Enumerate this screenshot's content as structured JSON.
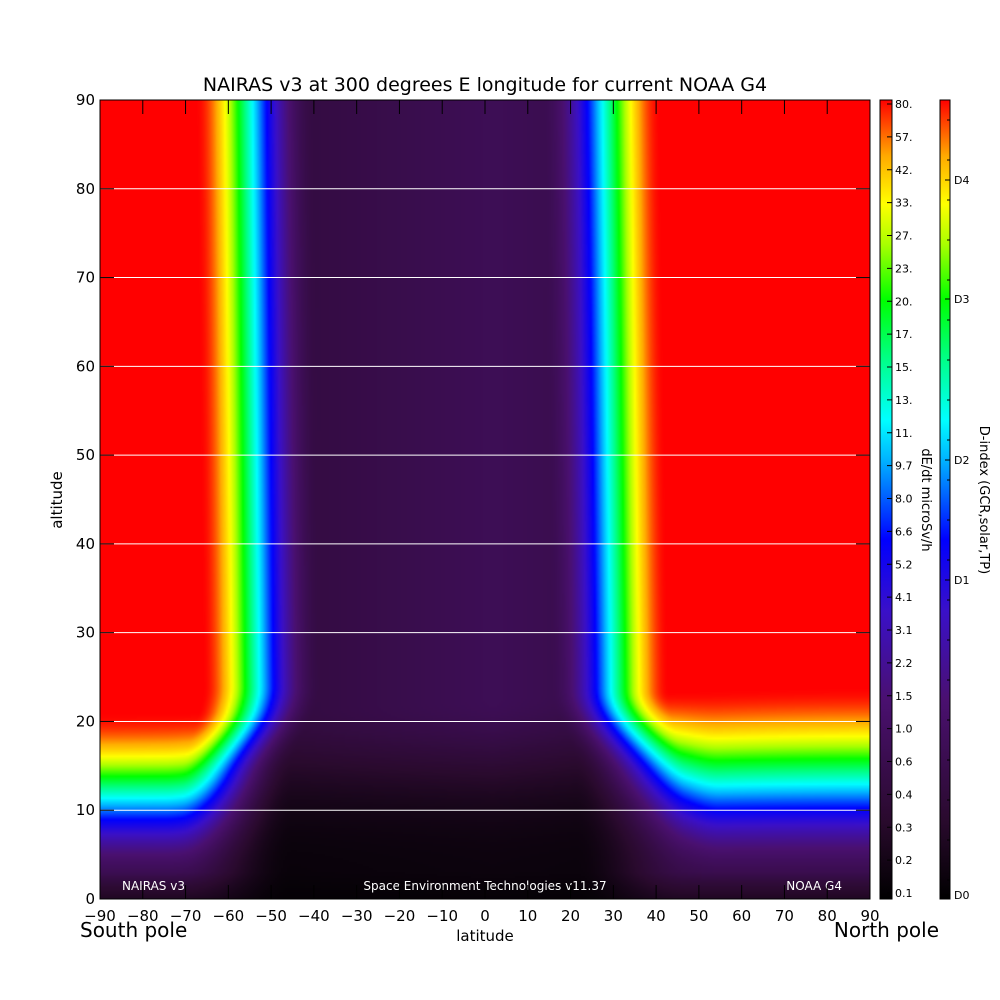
{
  "chart_data": {
    "type": "heatmap",
    "title": "NAIRAS v3 at 300 degrees E longitude for current NOAA G4",
    "xlabel": "latitude",
    "ylabel": "altitude",
    "x_ticks": [
      "-90",
      "-80",
      "-70",
      "-60",
      "-50",
      "-40",
      "-30",
      "-20",
      "-10",
      "0",
      "10",
      "20",
      "30",
      "40",
      "50",
      "60",
      "70",
      "80",
      "90"
    ],
    "y_ticks": [
      "0",
      "10",
      "20",
      "30",
      "40",
      "50",
      "60",
      "70",
      "80",
      "90"
    ],
    "xlim": [
      -90,
      90
    ],
    "ylim": [
      0,
      90
    ],
    "grid": "horizontal lines every 10 units of altitude",
    "left_caption": "South pole",
    "right_caption": "North pole",
    "footer": {
      "left": "NAIRAS v3",
      "center": "Space Environment Technologies v11.37",
      "right": "NOAA G4"
    },
    "colorbar_dose": {
      "label": "dE/dt microSv/h",
      "ticks": [
        "80.",
        "57.",
        "42.",
        "33.",
        "27.",
        "23.",
        "20.",
        "17.",
        "15.",
        "13.",
        "11.",
        "9.7",
        "8.0",
        "6.6",
        "5.2",
        "4.1",
        "3.1",
        "2.2",
        "1.5",
        "1.0",
        "0.6",
        "0.4",
        "0.3",
        "0.2",
        "0.1"
      ]
    },
    "colorbar_dindex": {
      "label": "D-index (GCR,solar,TP)",
      "ticks": [
        "D4",
        "D3",
        "D2",
        "D1",
        "D0"
      ]
    },
    "colormap": [
      "#000000",
      "#2a0a2e",
      "#4a1070",
      "#3a10c8",
      "#0000ff",
      "#00b4ff",
      "#00ffff",
      "#00ff80",
      "#00ff00",
      "#aaff00",
      "#ffff00",
      "#ffaa00",
      "#ff0000"
    ],
    "color_level_stops": [
      0.0,
      0.1,
      0.25,
      0.36,
      0.45,
      0.55,
      0.6,
      0.68,
      0.75,
      0.82,
      0.87,
      0.93,
      1.0
    ],
    "field_description": {
      "red_region_boundary_south_lat": [
        -66,
        -67,
        -70
      ],
      "red_region_boundary_north_lat": [
        42,
        43,
        45
      ],
      "low_altitude_red_boundary_south": 21,
      "low_altitude_red_boundary_north": 24
    }
  }
}
